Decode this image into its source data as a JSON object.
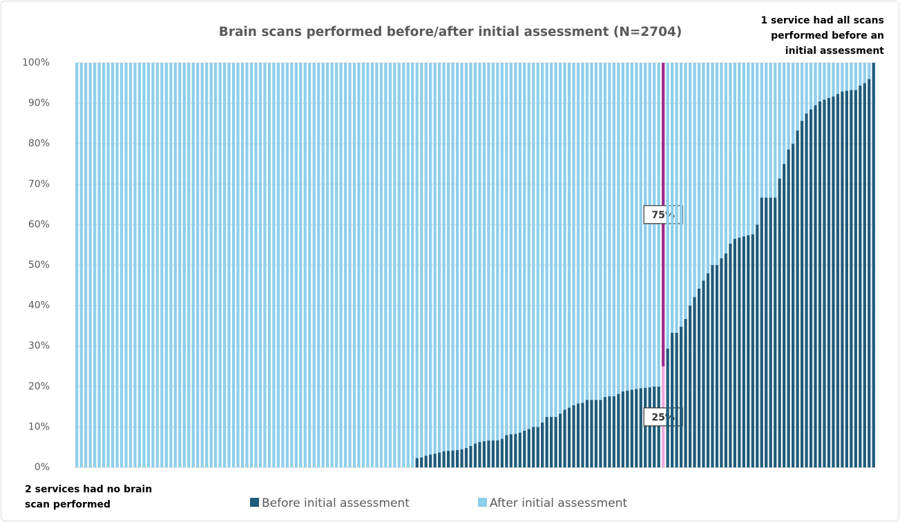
{
  "chart_data": {
    "type": "stacked_bar_100",
    "title": "Brain scans performed before/after initial assessment (N=2704)",
    "annotations": [
      {
        "lines": [
          "1 service had all scans",
          "performed  before an",
          "initial assessment"
        ]
      },
      {
        "lines": [
          "2 services had no brain",
          "scan performed"
        ]
      }
    ],
    "ylim": [
      0,
      100
    ],
    "yticks": [
      {
        "value": 0,
        "label": "0%"
      },
      {
        "value": 10,
        "label": "10%"
      },
      {
        "value": 20,
        "label": "20%"
      },
      {
        "value": 30,
        "label": "30%"
      },
      {
        "value": 40,
        "label": "40%"
      },
      {
        "value": 50,
        "label": "50%"
      },
      {
        "value": 60,
        "label": "60%"
      },
      {
        "value": 70,
        "label": "70%"
      },
      {
        "value": 80,
        "label": "80%"
      },
      {
        "value": 90,
        "label": "90%"
      },
      {
        "value": 100,
        "label": "100%"
      }
    ],
    "grid": true,
    "legend": "bottom",
    "highlight": {
      "index": 131,
      "colors": [
        "#f2a7e0",
        "#9c2a8f"
      ]
    },
    "series": [
      {
        "name": "Before initial assessment",
        "color": "#1f5c7a",
        "value_labels": {
          "131": "25%"
        },
        "values": [
          0,
          0,
          0,
          0,
          0,
          0,
          0,
          0,
          0,
          0,
          0,
          0,
          0,
          0,
          0,
          0,
          0,
          0,
          0,
          0,
          0,
          0,
          0,
          0,
          0,
          0,
          0,
          0,
          0,
          0,
          0,
          0,
          0,
          0,
          0,
          0,
          0,
          0,
          0,
          0,
          0,
          0,
          0,
          0,
          0,
          0,
          0,
          0,
          0,
          0,
          0,
          0,
          0,
          0,
          0,
          0,
          0,
          0,
          0,
          0,
          0,
          0,
          0,
          0,
          0,
          0,
          0,
          0,
          0,
          0,
          0,
          0,
          0,
          0,
          0,
          0,
          2.3,
          2.5,
          2.9,
          3.2,
          3.4,
          3.7,
          4.0,
          4.1,
          4.2,
          4.3,
          4.5,
          4.8,
          5.3,
          5.9,
          6.3,
          6.5,
          6.7,
          6.7,
          6.7,
          7.1,
          8.0,
          8.2,
          8.3,
          8.6,
          9.1,
          9.5,
          10.0,
          10.0,
          11.1,
          12.5,
          12.5,
          12.5,
          13.3,
          14.3,
          14.8,
          15.4,
          15.8,
          16.0,
          16.7,
          16.7,
          16.7,
          16.7,
          17.4,
          17.6,
          17.6,
          18.2,
          18.8,
          19.0,
          19.2,
          19.4,
          19.6,
          19.7,
          19.8,
          20.0,
          20.0,
          25,
          29.4,
          33.3,
          33.3,
          34.8,
          36.7,
          40.0,
          42.1,
          44.2,
          46.2,
          48.0,
          50.0,
          50.0,
          51.7,
          52.9,
          55.3,
          56.5,
          56.8,
          57.1,
          57.4,
          57.6,
          60.0,
          66.7,
          66.7,
          66.7,
          66.7,
          71.4,
          75.0,
          78.6,
          80.0,
          83.3,
          85.7,
          87.5,
          88.5,
          89.5,
          90.5,
          90.9,
          91.3,
          91.7,
          92.3,
          92.9,
          93.1,
          93.3,
          93.3,
          94.4,
          95.0,
          96.0,
          100
        ]
      },
      {
        "name": "After initial assessment",
        "color": "#8ecfea",
        "value_labels": {
          "131": "75%"
        },
        "values": [
          100,
          100,
          100,
          100,
          100,
          100,
          100,
          100,
          100,
          100,
          100,
          100,
          100,
          100,
          100,
          100,
          100,
          100,
          100,
          100,
          100,
          100,
          100,
          100,
          100,
          100,
          100,
          100,
          100,
          100,
          100,
          100,
          100,
          100,
          100,
          100,
          100,
          100,
          100,
          100,
          100,
          100,
          100,
          100,
          100,
          100,
          100,
          100,
          100,
          100,
          100,
          100,
          100,
          100,
          100,
          100,
          100,
          100,
          100,
          100,
          100,
          100,
          100,
          100,
          100,
          100,
          100,
          100,
          100,
          100,
          100,
          100,
          100,
          100,
          100,
          100,
          97.7,
          97.5,
          97.1,
          96.8,
          96.6,
          96.3,
          96.0,
          95.9,
          95.8,
          95.7,
          95.5,
          95.2,
          94.7,
          94.1,
          93.7,
          93.5,
          93.3,
          93.3,
          93.3,
          92.9,
          92.0,
          91.8,
          91.7,
          91.4,
          90.9,
          90.5,
          90.0,
          90.0,
          88.9,
          87.5,
          87.5,
          87.5,
          86.7,
          85.7,
          85.2,
          84.6,
          84.2,
          84.0,
          83.3,
          83.3,
          83.3,
          83.3,
          82.6,
          82.4,
          82.4,
          81.8,
          81.2,
          81.0,
          80.8,
          80.6,
          80.4,
          80.3,
          80.2,
          80.0,
          80.0,
          75,
          70.6,
          66.7,
          66.7,
          65.2,
          63.3,
          60.0,
          57.9,
          55.8,
          53.8,
          52.0,
          50.0,
          50.0,
          48.3,
          47.1,
          44.7,
          43.5,
          43.2,
          42.9,
          42.6,
          42.4,
          40.0,
          33.3,
          33.3,
          33.3,
          33.3,
          28.6,
          25.0,
          21.4,
          20.0,
          16.7,
          14.3,
          12.5,
          11.5,
          10.5,
          9.5,
          9.1,
          8.7,
          8.3,
          7.7,
          7.1,
          6.9,
          6.7,
          6.7,
          5.6,
          5.0,
          4.0,
          0
        ]
      }
    ]
  }
}
